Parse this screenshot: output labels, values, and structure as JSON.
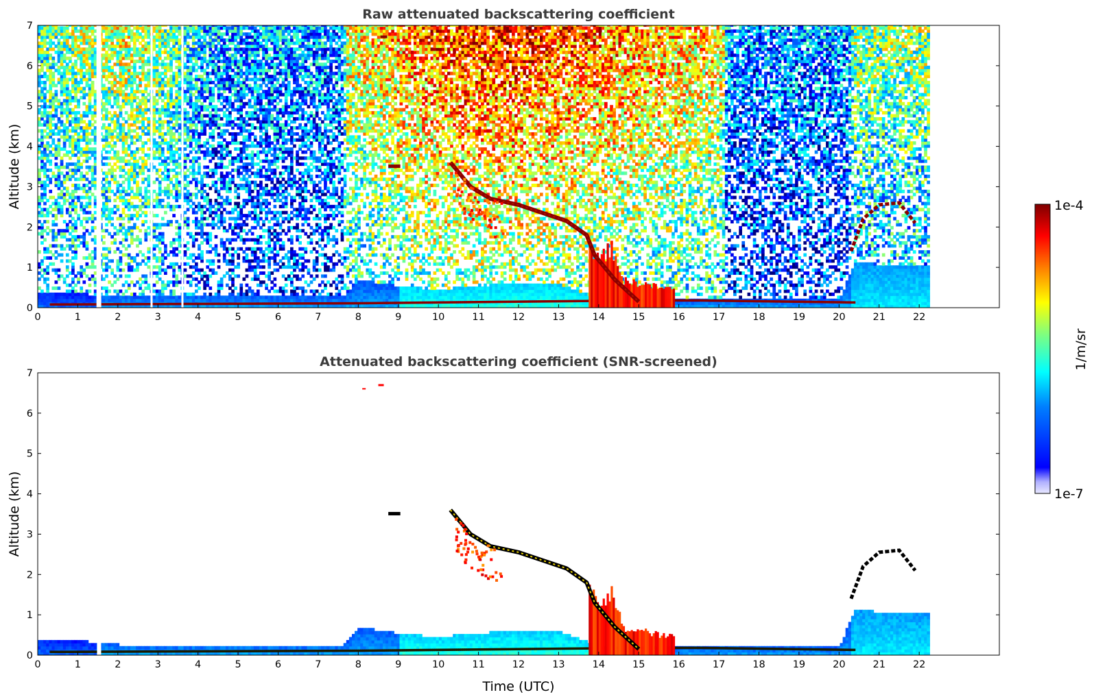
{
  "colors": {
    "jet": [
      "#00007f",
      "#0000ff",
      "#007fff",
      "#00ffff",
      "#7fff7f",
      "#ffff00",
      "#ff7f00",
      "#ff0000",
      "#7f0000"
    ],
    "frame": "#000000",
    "title_text": "#3b3b3b",
    "layer_core": "#000000"
  },
  "chart_data": [
    {
      "type": "heatmap",
      "title": "Raw attenuated backscattering coefficient",
      "xlabel": "",
      "ylabel": "Altitude (km)",
      "xlim": [
        0,
        24
      ],
      "ylim": [
        0,
        7
      ],
      "x_ticks": [
        "0",
        "1",
        "2",
        "3",
        "4",
        "5",
        "6",
        "7",
        "8",
        "9",
        "10",
        "11",
        "12",
        "13",
        "14",
        "15",
        "16",
        "17",
        "18",
        "19",
        "20",
        "21",
        "22"
      ],
      "y_ticks": [
        "0",
        "1",
        "2",
        "3",
        "4",
        "5",
        "6",
        "7"
      ],
      "data_extent_x": [
        0,
        22.2
      ],
      "features": {
        "aerosol_layer_top_km": [
          [
            0,
            0.4
          ],
          [
            1,
            0.35
          ],
          [
            2,
            0.3
          ],
          [
            7.7,
            0.3
          ],
          [
            8,
            0.7
          ],
          [
            9,
            0.55
          ],
          [
            10,
            0.45
          ],
          [
            11,
            0.55
          ],
          [
            12,
            0.6
          ],
          [
            13,
            0.6
          ],
          [
            14,
            0.25
          ],
          [
            16,
            0.2
          ],
          [
            20,
            0.2
          ],
          [
            20.4,
            1.1
          ],
          [
            22.2,
            1.05
          ]
        ],
        "elevated_layer_km": [
          [
            10.3,
            3.6
          ],
          [
            10.8,
            3.0
          ],
          [
            11.3,
            2.7
          ],
          [
            12,
            2.55
          ],
          [
            12.6,
            2.35
          ],
          [
            13.2,
            2.15
          ],
          [
            13.7,
            1.8
          ],
          [
            13.9,
            1.3
          ],
          [
            14.4,
            0.7
          ],
          [
            15,
            0.15
          ]
        ],
        "near_surface_layer_km": [
          [
            0.5,
            0.05
          ],
          [
            8,
            0.08
          ],
          [
            15,
            0.15
          ],
          [
            16.5,
            0.15
          ],
          [
            20.3,
            0.1
          ]
        ],
        "dense_plume_km": [
          [
            13.8,
            1.6
          ],
          [
            14.0,
            1.2
          ],
          [
            14.3,
            1.6
          ],
          [
            14.6,
            0.7
          ],
          [
            15.2,
            0.6
          ],
          [
            15.6,
            0.5
          ]
        ],
        "cloud_arc_km": [
          [
            20.3,
            1.4
          ],
          [
            20.6,
            2.2
          ],
          [
            21.0,
            2.55
          ],
          [
            21.5,
            2.6
          ],
          [
            21.9,
            2.1
          ]
        ]
      }
    },
    {
      "type": "heatmap",
      "title": "Attenuated backscattering coefficient (SNR-screened)",
      "xlabel": "Time (UTC)",
      "ylabel": "Altitude (km)",
      "xlim": [
        0,
        24
      ],
      "ylim": [
        0,
        7
      ],
      "x_ticks": [
        "0",
        "1",
        "2",
        "3",
        "4",
        "5",
        "6",
        "7",
        "8",
        "9",
        "10",
        "11",
        "12",
        "13",
        "14",
        "15",
        "16",
        "17",
        "18",
        "19",
        "20",
        "21",
        "22"
      ],
      "y_ticks": [
        "0",
        "1",
        "2",
        "3",
        "4",
        "5",
        "6",
        "7"
      ],
      "data_extent_x": [
        0,
        22.2
      ]
    }
  ],
  "colorbar": {
    "label": "1/m/sr",
    "max_label": "1e-4",
    "min_label": "1e-7",
    "scale": "log",
    "range": [
      1e-07,
      0.0001
    ]
  }
}
